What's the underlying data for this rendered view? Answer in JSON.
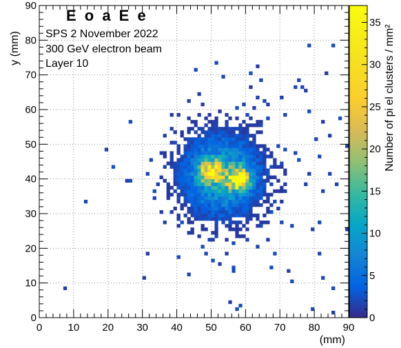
{
  "chart_data": {
    "type": "heatmap",
    "title": "E o a E   e",
    "annotations": [
      "SPS  2 November 2022",
      "300 GeV electron beam",
      "Layer 10"
    ],
    "xlabel": "(mm)",
    "ylabel": "y (mm)",
    "zlabel": "Number of pi el clusters / mm²",
    "xlim": [
      0,
      90
    ],
    "ylim": [
      0,
      90
    ],
    "zlim": [
      0,
      37
    ],
    "bin_size_mm": 1,
    "xticks": [
      0,
      10,
      20,
      30,
      40,
      50,
      60,
      70,
      80,
      90
    ],
    "yticks": [
      0,
      10,
      20,
      30,
      40,
      50,
      60,
      70,
      80,
      90
    ],
    "zticks": [
      0,
      5,
      10,
      15,
      20,
      25,
      30,
      35
    ],
    "grid": true,
    "colormap": "parula",
    "hotspots": [
      {
        "x": 50,
        "y": 42,
        "peak": 30,
        "sigma": 2.0
      },
      {
        "x": 58,
        "y": 40,
        "peak": 35,
        "sigma": 2.0
      },
      {
        "x": 53,
        "y": 41,
        "peak": 12,
        "sigma": 7.0
      }
    ],
    "sparse_hits": [
      [
        7,
        8
      ],
      [
        13,
        33
      ],
      [
        19,
        48
      ],
      [
        21,
        43
      ],
      [
        25,
        39
      ],
      [
        26,
        39
      ],
      [
        26,
        56
      ],
      [
        30,
        11
      ],
      [
        31,
        18
      ],
      [
        33,
        36
      ],
      [
        35,
        30
      ],
      [
        36,
        27
      ],
      [
        38,
        58
      ],
      [
        39,
        50
      ],
      [
        40,
        17
      ],
      [
        40,
        48
      ],
      [
        43,
        12
      ],
      [
        43,
        62
      ],
      [
        45,
        71
      ],
      [
        44,
        54
      ],
      [
        49,
        22
      ],
      [
        51,
        73
      ],
      [
        53,
        69
      ],
      [
        53,
        52
      ],
      [
        56,
        14
      ],
      [
        56,
        13
      ],
      [
        55,
        4
      ],
      [
        57,
        2
      ],
      [
        58,
        3
      ],
      [
        61,
        70
      ],
      [
        61,
        66
      ],
      [
        63,
        72
      ],
      [
        64,
        68
      ],
      [
        64,
        55
      ],
      [
        66,
        57
      ],
      [
        67,
        14
      ],
      [
        68,
        18
      ],
      [
        69,
        49
      ],
      [
        70,
        63
      ],
      [
        70,
        27
      ],
      [
        71,
        58
      ],
      [
        72,
        13
      ],
      [
        73,
        10
      ],
      [
        74,
        47
      ],
      [
        74,
        66
      ],
      [
        75,
        68
      ],
      [
        76,
        66
      ],
      [
        77,
        65
      ],
      [
        78,
        78
      ],
      [
        78,
        59
      ],
      [
        79,
        25
      ],
      [
        80,
        51
      ],
      [
        81,
        46
      ],
      [
        81,
        27
      ],
      [
        81,
        18
      ],
      [
        82,
        11
      ],
      [
        82,
        56
      ],
      [
        82,
        36
      ],
      [
        83,
        70
      ],
      [
        85,
        78
      ],
      [
        85,
        8
      ],
      [
        86,
        38
      ],
      [
        87,
        57
      ],
      [
        89,
        49
      ],
      [
        89,
        25
      ],
      [
        85,
        1
      ],
      [
        79,
        2
      ],
      [
        44,
        33
      ],
      [
        46,
        64
      ],
      [
        65,
        62
      ],
      [
        66,
        61
      ],
      [
        63,
        63
      ],
      [
        62,
        60
      ],
      [
        75,
        45
      ],
      [
        78,
        41
      ],
      [
        77,
        38
      ],
      [
        84,
        52
      ],
      [
        84,
        41
      ],
      [
        73,
        26
      ],
      [
        71,
        36
      ],
      [
        70,
        44
      ],
      [
        71,
        48
      ],
      [
        36,
        43
      ],
      [
        34,
        38
      ],
      [
        35,
        47
      ],
      [
        36,
        52
      ],
      [
        38,
        54
      ],
      [
        39,
        31
      ],
      [
        41,
        27
      ],
      [
        43,
        24
      ],
      [
        47,
        20
      ],
      [
        48,
        18
      ],
      [
        50,
        16
      ],
      [
        52,
        15
      ],
      [
        54,
        18
      ],
      [
        56,
        21
      ],
      [
        60,
        22
      ],
      [
        63,
        20
      ],
      [
        66,
        22
      ],
      [
        64,
        26
      ],
      [
        67,
        30
      ],
      [
        68,
        33
      ],
      [
        33,
        34
      ],
      [
        31,
        41
      ],
      [
        32,
        45
      ],
      [
        37,
        36
      ],
      [
        40,
        58
      ],
      [
        47,
        61
      ],
      [
        49,
        58
      ],
      [
        57,
        60
      ],
      [
        59,
        61
      ],
      [
        60,
        58
      ],
      [
        62,
        55
      ],
      [
        65,
        46
      ],
      [
        67,
        43
      ],
      [
        68,
        40
      ],
      [
        47,
        25
      ],
      [
        51,
        23
      ],
      [
        55,
        25
      ],
      [
        58,
        27
      ]
    ]
  },
  "colors": {
    "grid": "#888888",
    "axis": "#000000"
  }
}
